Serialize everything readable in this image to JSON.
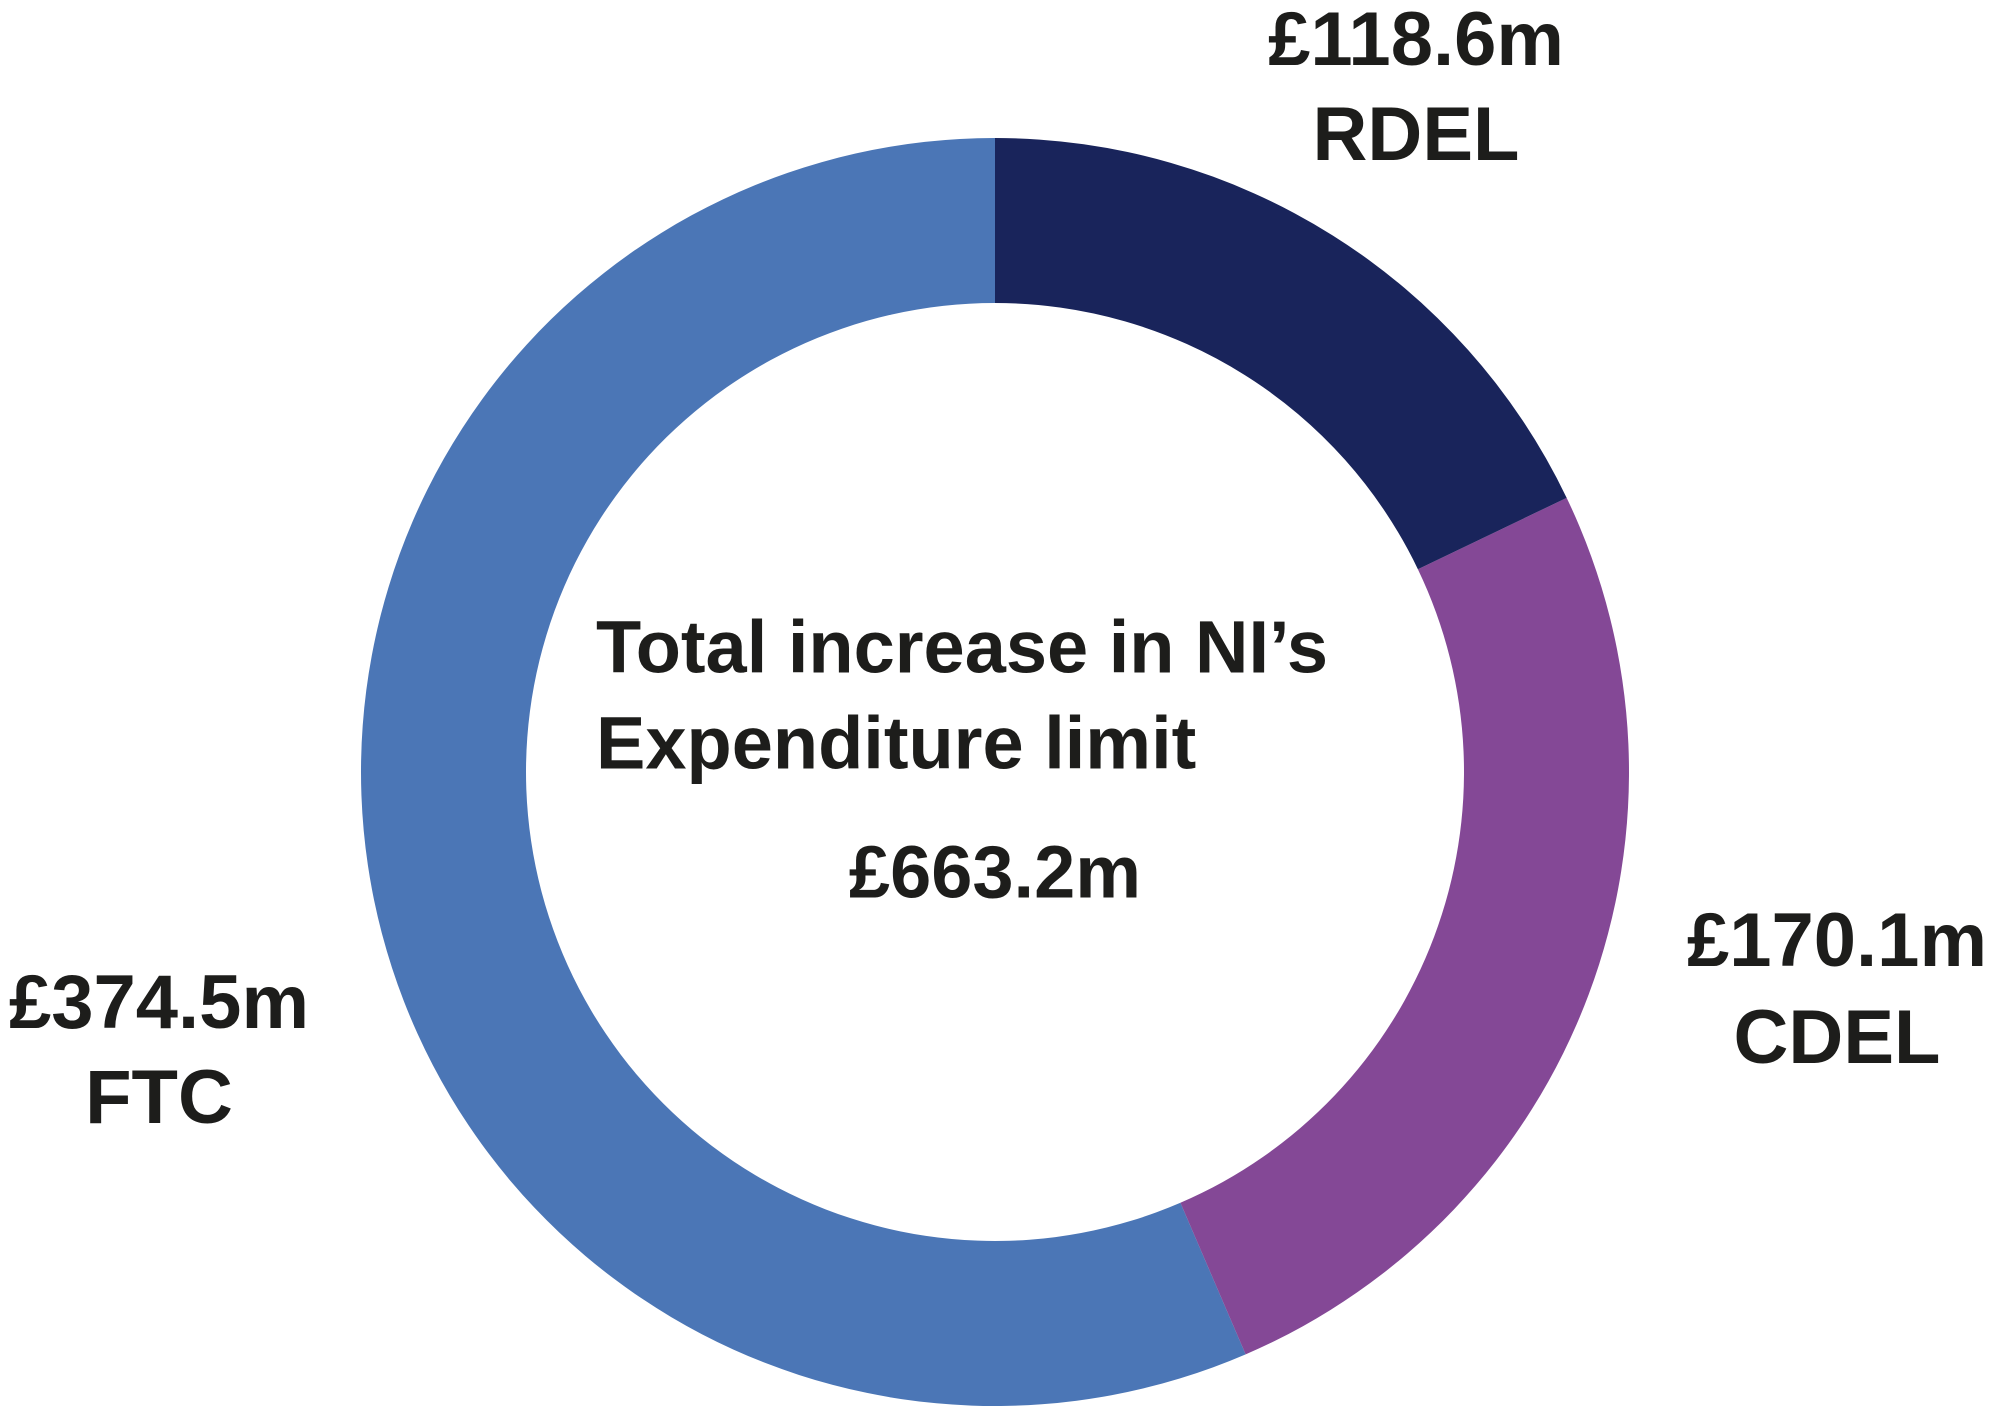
{
  "chart_data": {
    "type": "donut",
    "categories": [
      "RDEL",
      "CDEL",
      "FTC"
    ],
    "values": [
      118.6,
      170.1,
      374.5
    ],
    "value_labels": [
      "£118.6m",
      "£170.1m",
      "£374.5m"
    ],
    "colors": [
      "#19245b",
      "#844896",
      "#4b76b6"
    ],
    "center_text": [
      "Total increase in NI’s",
      "Expenditure limit"
    ],
    "total_label": "£663.2m"
  }
}
